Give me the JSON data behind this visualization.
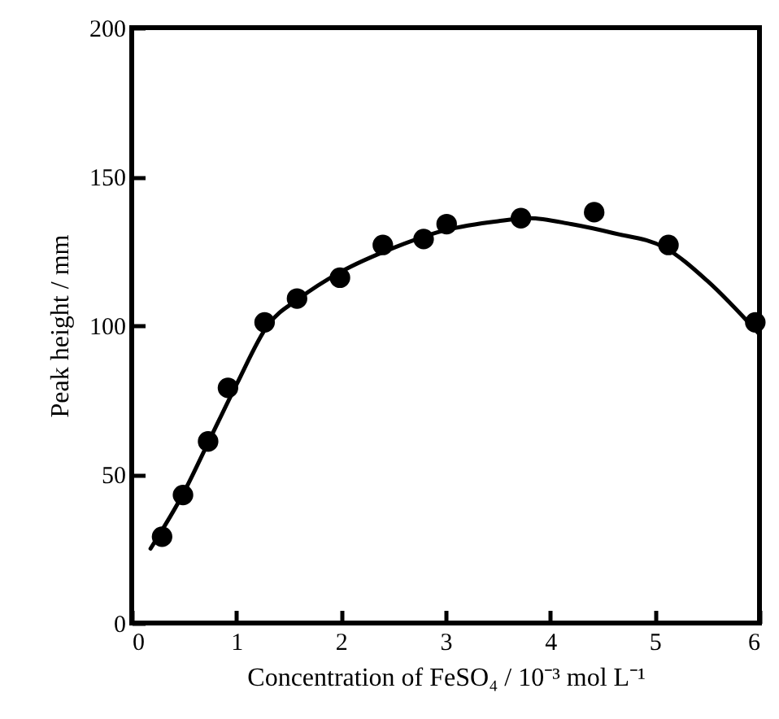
{
  "chart_data": {
    "type": "scatter",
    "xlabel": "Concentration of FeSO₄ / 10⁻³ mol L⁻¹",
    "ylabel": "Peak height / mm",
    "xlim": [
      0,
      6
    ],
    "xticks": [
      0,
      1,
      2,
      3,
      4,
      5,
      6
    ],
    "ylim": [
      0,
      200
    ],
    "yticks": [
      0,
      50,
      100,
      150,
      200
    ],
    "grid": false,
    "series": [
      {
        "marker": "circle",
        "color": "#000000",
        "x": [
          0.29,
          0.49,
          0.73,
          0.92,
          1.27,
          1.58,
          1.99,
          2.4,
          2.79,
          3.01,
          3.72,
          4.42,
          5.13,
          5.96
        ],
        "values": [
          29,
          43,
          61,
          79,
          101,
          109,
          116,
          127,
          129,
          134,
          136,
          138,
          127,
          101
        ]
      },
      {
        "type": "line",
        "color": "#000000",
        "line_style": "solid",
        "x": [
          0.18,
          0.5,
          0.75,
          1.0,
          1.3,
          1.6,
          2.0,
          2.5,
          3.0,
          3.5,
          3.8,
          4.2,
          4.6,
          5.1,
          5.5,
          6.0
        ],
        "values": [
          25,
          44,
          62,
          80,
          100,
          109,
          118,
          126,
          132,
          135,
          136,
          134,
          131,
          126,
          115,
          97
        ]
      }
    ]
  }
}
